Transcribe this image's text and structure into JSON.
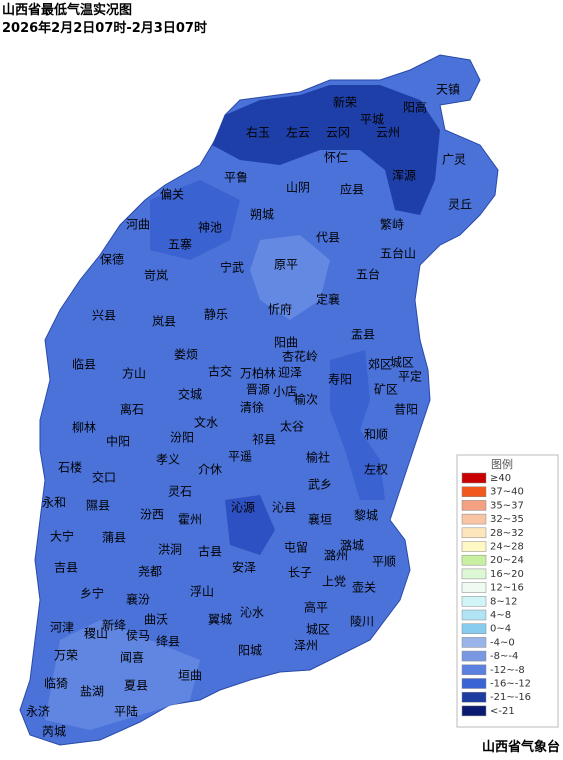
{
  "title": "山西省最低气温实况图",
  "subtitle": "2026年2月2日07时-2月3日07时",
  "counties": [
    "天镇",
    "新荣",
    "阳高",
    "平城",
    "右玉",
    "左云",
    "云冈",
    "云州",
    "怀仁",
    "广灵",
    "浑源",
    "平鲁",
    "山阴",
    "应县",
    "偏关",
    "灵丘",
    "朔城",
    "河曲",
    "神池",
    "繁峙",
    "五寨",
    "代县",
    "保德",
    "五台山",
    "宁武",
    "原平",
    "岢岚",
    "五台",
    "静乐",
    "忻府",
    "定襄",
    "兴县",
    "岚县",
    "盂县",
    "阳曲",
    "娄烦",
    "临县",
    "方山",
    "寿阳",
    "平定",
    "郊区",
    "矿区",
    "城区",
    "古交",
    "交城",
    "杏花岭",
    "万柏林",
    "迎泽",
    "晋源",
    "小店",
    "离石",
    "清徐",
    "榆次",
    "昔阳",
    "柳林",
    "文水",
    "太谷",
    "中阳",
    "汾阳",
    "祁县",
    "和顺",
    "石楼",
    "孝义",
    "平遥",
    "榆社",
    "交口",
    "介休",
    "左权",
    "灵石",
    "武乡",
    "永和",
    "隰县",
    "沁源",
    "沁县",
    "黎城",
    "汾西",
    "霍州",
    "襄垣",
    "大宁",
    "蒲县",
    "洪洞",
    "古县",
    "屯留",
    "潞城",
    "平顺",
    "吉县",
    "尧都",
    "安泽",
    "长子",
    "潞州",
    "上党",
    "壶关",
    "乡宁",
    "襄汾",
    "浮山",
    "沁水",
    "高平",
    "陵川",
    "河津",
    "稷山",
    "新绛",
    "曲沃",
    "侯马",
    "翼城",
    "绛县",
    "城区",
    "万荣",
    "闻喜",
    "阳城",
    "泽州",
    "临猗",
    "盐湖",
    "夏县",
    "垣曲",
    "永济",
    "平陆",
    "芮城"
  ],
  "legend": {
    "title": "图例",
    "items": [
      {
        "label": "≥40",
        "color": "#c80000"
      },
      {
        "label": "37~40",
        "color": "#f0581e"
      },
      {
        "label": "35~37",
        "color": "#f4a082"
      },
      {
        "label": "32~35",
        "color": "#f8c4a4"
      },
      {
        "label": "28~32",
        "color": "#fde6bc"
      },
      {
        "label": "24~28",
        "color": "#fff8c4"
      },
      {
        "label": "20~24",
        "color": "#c8f0a0"
      },
      {
        "label": "16~20",
        "color": "#dcf8d4"
      },
      {
        "label": "12~16",
        "color": "#eefaf2"
      },
      {
        "label": "8~12",
        "color": "#d0f4f8"
      },
      {
        "label": "4~8",
        "color": "#b0e4f4"
      },
      {
        "label": "0~4",
        "color": "#88ccf0"
      },
      {
        "label": "-4~0",
        "color": "#98b4e8"
      },
      {
        "label": "-8~-4",
        "color": "#7898e4"
      },
      {
        "label": "-12~-8",
        "color": "#5a80e0"
      },
      {
        "label": "-16~-12",
        "color": "#3a64d4"
      },
      {
        "label": "-21~-16",
        "color": "#1c3ca0"
      },
      {
        "label": "<-21",
        "color": "#0a1a70"
      }
    ]
  },
  "footer": "山西省气象台"
}
